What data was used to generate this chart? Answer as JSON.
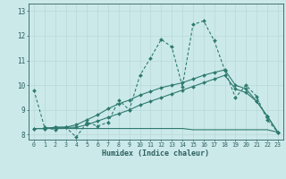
{
  "xlabel": "Humidex (Indice chaleur)",
  "bg_color": "#cce9e9",
  "line_color": "#2d7a6e",
  "grid_color": "#b8d8d8",
  "axis_color": "#2d6060",
  "xlim": [
    -0.5,
    23.5
  ],
  "ylim": [
    7.8,
    13.3
  ],
  "xticks": [
    0,
    1,
    2,
    3,
    4,
    5,
    6,
    7,
    8,
    9,
    10,
    11,
    12,
    13,
    14,
    15,
    16,
    17,
    18,
    19,
    20,
    21,
    22,
    23
  ],
  "yticks": [
    8,
    9,
    10,
    11,
    12,
    13
  ],
  "line1_x": [
    0,
    1,
    2,
    3,
    4,
    5,
    6,
    7,
    8,
    9,
    10,
    11,
    12,
    13,
    14,
    15,
    16,
    17,
    18,
    19,
    20,
    21,
    22,
    23
  ],
  "line1_y": [
    9.8,
    8.3,
    8.2,
    8.3,
    7.9,
    8.5,
    8.35,
    8.5,
    9.4,
    9.0,
    10.4,
    11.1,
    11.85,
    11.55,
    9.95,
    12.45,
    12.6,
    11.8,
    10.6,
    9.5,
    10.0,
    9.55,
    8.6,
    8.1
  ],
  "line2_x": [
    0,
    1,
    2,
    3,
    4,
    5,
    6,
    7,
    8,
    9,
    10,
    11,
    12,
    13,
    14,
    15,
    16,
    17,
    18,
    19,
    20,
    21,
    22,
    23
  ],
  "line2_y": [
    8.25,
    8.25,
    8.25,
    8.25,
    8.25,
    8.25,
    8.25,
    8.25,
    8.25,
    8.25,
    8.25,
    8.25,
    8.25,
    8.25,
    8.25,
    8.2,
    8.2,
    8.2,
    8.2,
    8.2,
    8.2,
    8.2,
    8.2,
    8.1
  ],
  "line3_x": [
    0,
    1,
    2,
    3,
    4,
    5,
    6,
    7,
    8,
    9,
    10,
    11,
    12,
    13,
    14,
    15,
    16,
    17,
    18,
    19,
    20,
    21,
    22,
    23
  ],
  "line3_y": [
    8.25,
    8.25,
    8.3,
    8.3,
    8.3,
    8.4,
    8.55,
    8.7,
    8.85,
    9.0,
    9.2,
    9.35,
    9.5,
    9.65,
    9.8,
    9.95,
    10.1,
    10.25,
    10.4,
    9.85,
    9.7,
    9.35,
    8.75,
    8.1
  ],
  "line4_x": [
    0,
    1,
    2,
    3,
    4,
    5,
    6,
    7,
    8,
    9,
    10,
    11,
    12,
    13,
    14,
    15,
    16,
    17,
    18,
    19,
    20,
    21,
    22,
    23
  ],
  "line4_y": [
    8.25,
    8.25,
    8.3,
    8.3,
    8.4,
    8.6,
    8.8,
    9.05,
    9.25,
    9.4,
    9.6,
    9.75,
    9.9,
    10.0,
    10.1,
    10.25,
    10.4,
    10.52,
    10.62,
    10.0,
    9.85,
    9.35,
    8.75,
    8.1
  ]
}
